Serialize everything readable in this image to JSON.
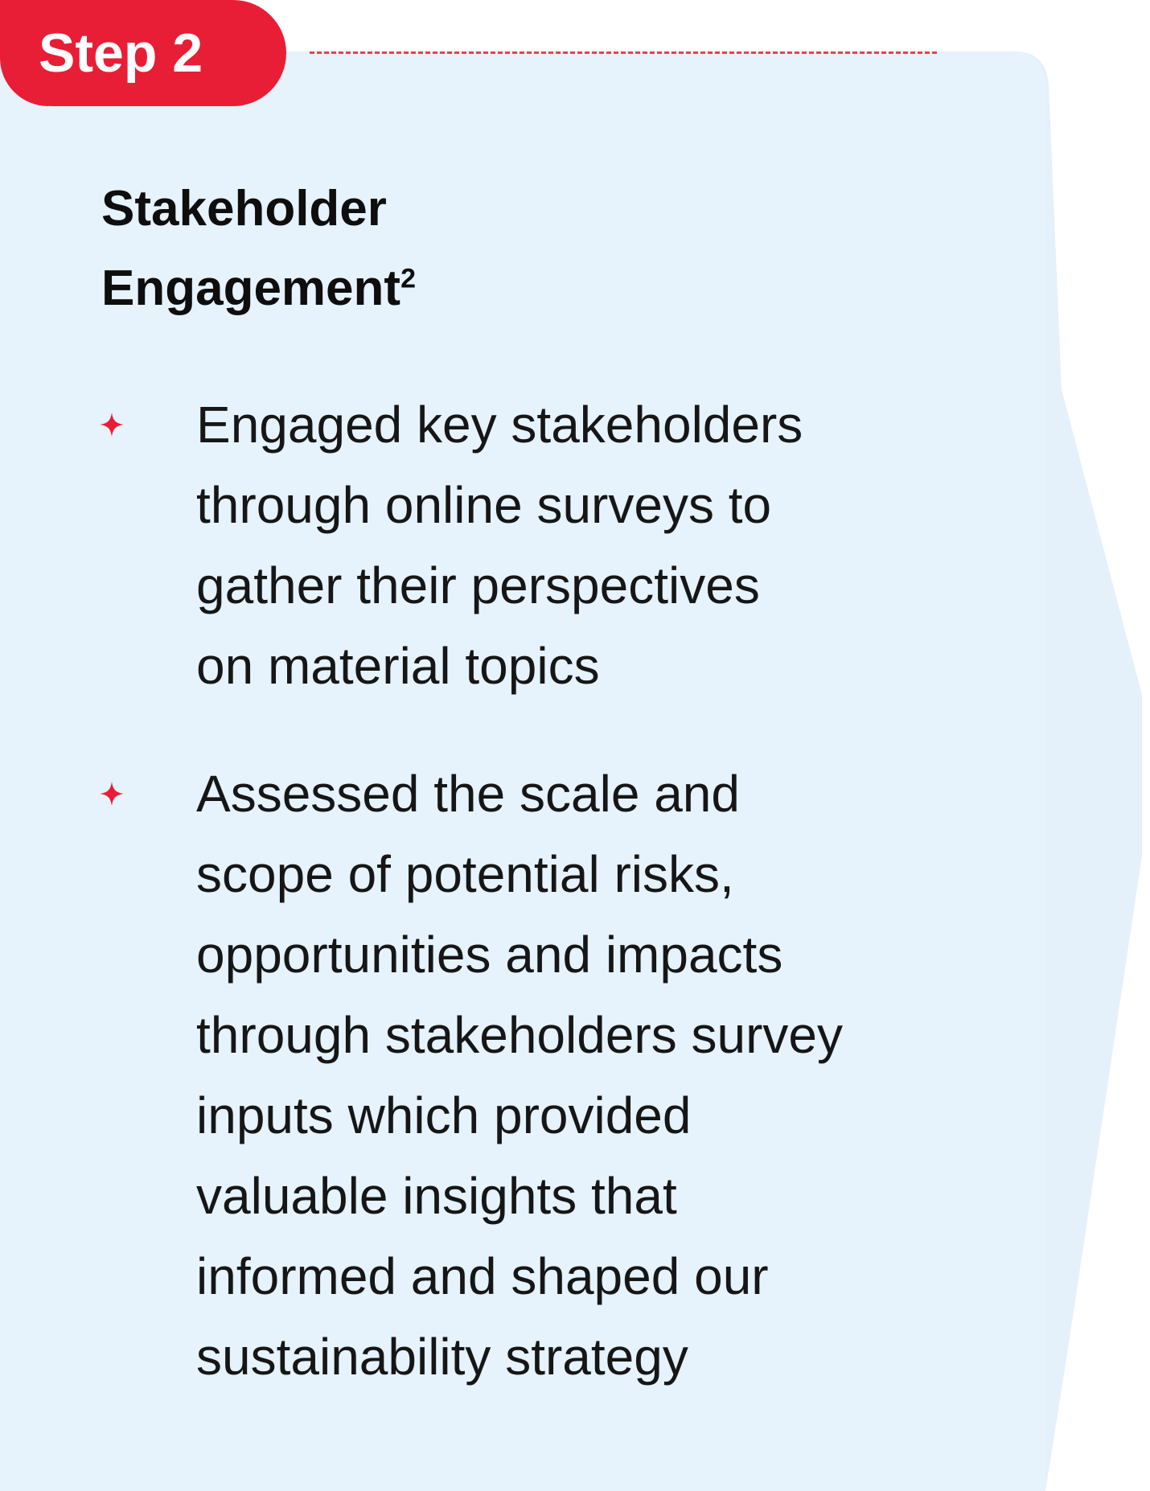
{
  "step": {
    "label": "Step 2"
  },
  "title": {
    "line1": "Stakeholder",
    "line2": "Engagement",
    "footnote": "2"
  },
  "bullets": [
    {
      "icon": "sparkle-icon",
      "lines": [
        "Engaged key stakeholders",
        "through online surveys to",
        "gather their perspectives",
        "on material topics"
      ]
    },
    {
      "icon": "sparkle-icon",
      "lines": [
        "Assessed the scale and",
        "scope of potential risks,",
        "opportunities and impacts",
        "through stakeholders survey",
        "inputs which provided",
        "valuable insights that",
        "informed and shaped our",
        "sustainability strategy"
      ]
    }
  ],
  "colors": {
    "accent": "#e81e36",
    "card_background": "#e6f2fc",
    "text": "#161616"
  }
}
